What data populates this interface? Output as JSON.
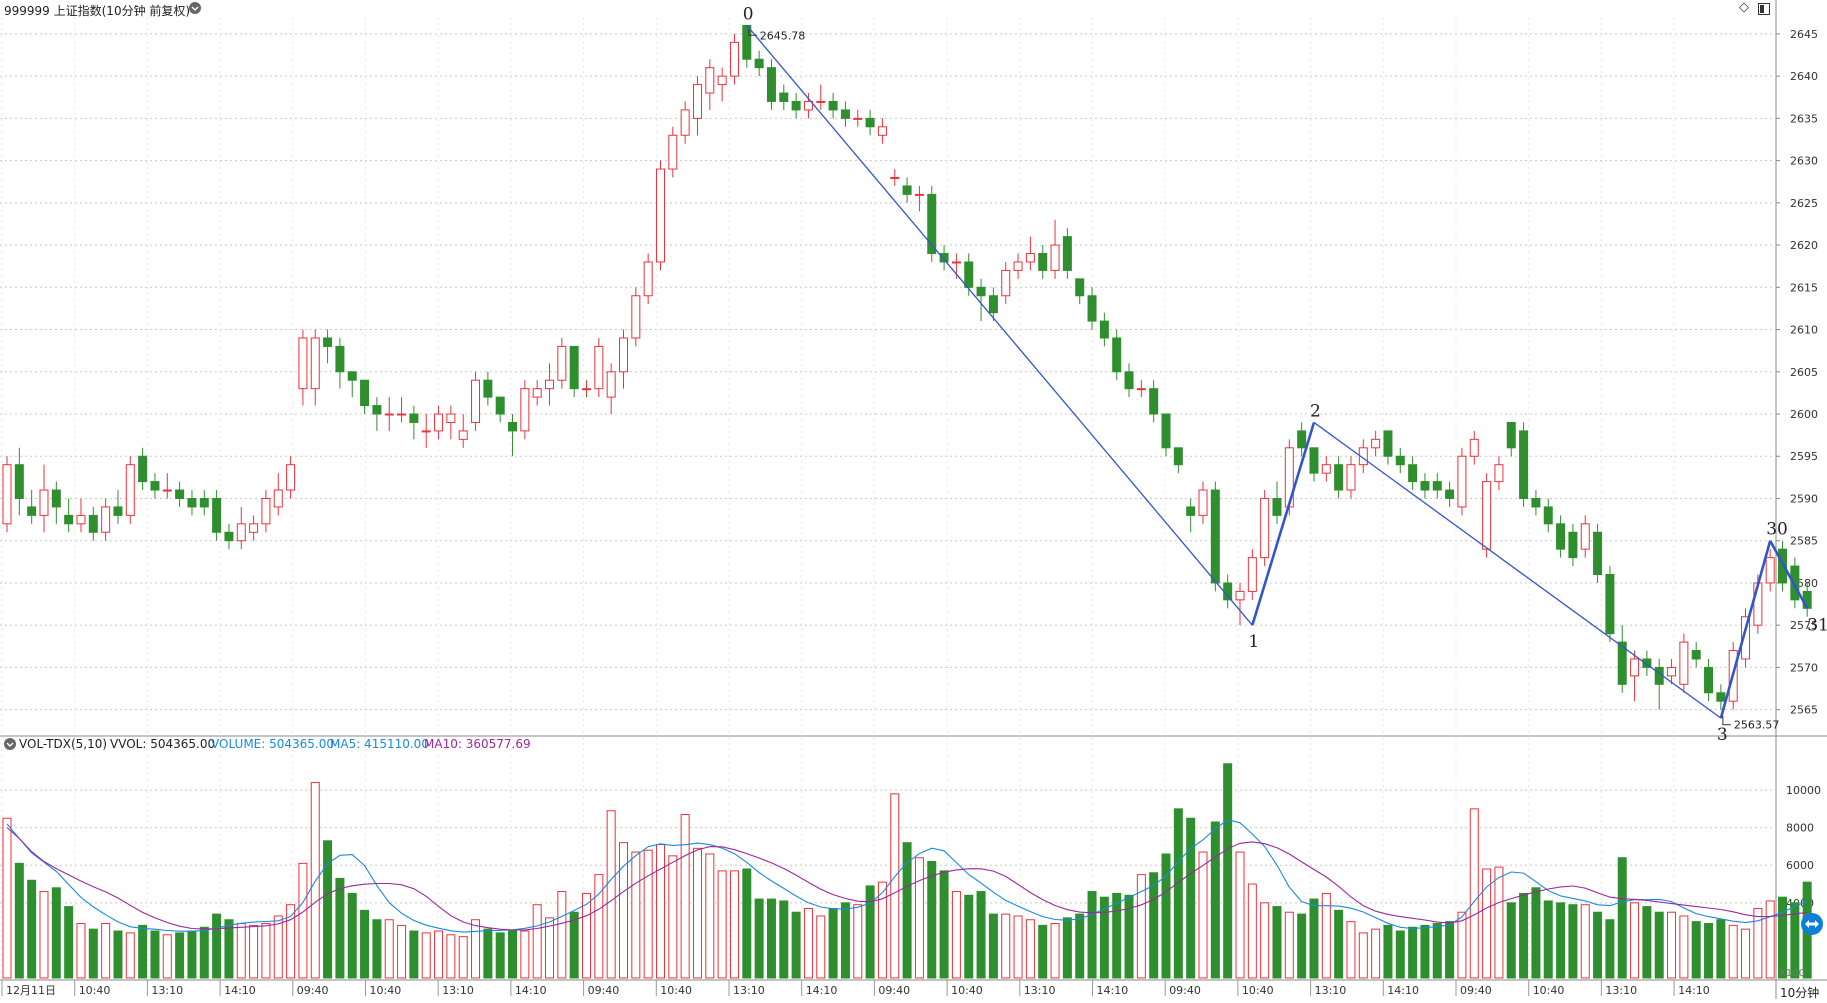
{
  "header": {
    "title": "999999 上证指数(10分钟 前复权)",
    "vol_indicator": "VOL-TDX(5,10)",
    "vvol_label": "VVOL: 504365.00",
    "volume_label": "VOLUME: 504365.00",
    "ma5_label": "MA5: 415110.00",
    "ma10_label": "MA10: 360577.69",
    "vol_unit": "X100",
    "period_label": "10分钟"
  },
  "colors": {
    "up": "#e8343c",
    "down": "#2f8f2f",
    "line": "#3355cc",
    "ma5": "#1a8ae0",
    "ma10": "#9b2a9b",
    "grid": "#c8c8c8"
  },
  "chart_data": [
    {
      "type": "candlestick",
      "y_ticks": [
        "2645",
        "2640",
        "2635",
        "2630",
        "2625",
        "2620",
        "2615",
        "2610",
        "2605",
        "2600",
        "2595",
        "2590",
        "2585",
        "2580",
        "2575",
        "2570",
        "2565"
      ],
      "ylim": [
        2562,
        2647
      ],
      "x_tick_labels": [
        "12月11日",
        "10:40",
        "13:10",
        "14:10",
        "09:40",
        "10:40",
        "13:10",
        "14:10",
        "09:40",
        "10:40",
        "13:10",
        "14:10",
        "09:40",
        "10:40",
        "13:10",
        "14:10",
        "09:40",
        "10:40",
        "13:10",
        "14:10",
        "09:40",
        "10:40",
        "13:10",
        "14:10"
      ],
      "candles": [
        [
          2587,
          2594,
          2595,
          2586
        ],
        [
          2594,
          2590,
          2596,
          2588
        ],
        [
          2589,
          2588,
          2591,
          2587
        ],
        [
          2588,
          2591,
          2594,
          2586
        ],
        [
          2591,
          2589,
          2592,
          2587
        ],
        [
          2588,
          2587,
          2590,
          2586
        ],
        [
          2587,
          2588,
          2590,
          2586
        ],
        [
          2588,
          2586,
          2589,
          2585
        ],
        [
          2586,
          2589,
          2590,
          2585
        ],
        [
          2589,
          2588,
          2591,
          2587
        ],
        [
          2588,
          2594,
          2595,
          2587
        ],
        [
          2595,
          2592,
          2596,
          2591
        ],
        [
          2592,
          2591,
          2593,
          2590
        ],
        [
          2591,
          2591,
          2593,
          2590
        ],
        [
          2591,
          2590,
          2592,
          2589
        ],
        [
          2590,
          2589,
          2591,
          2588
        ],
        [
          2590,
          2589,
          2591,
          2588
        ],
        [
          2590,
          2586,
          2591,
          2585
        ],
        [
          2586,
          2585,
          2587,
          2584
        ],
        [
          2585,
          2587,
          2589,
          2584
        ],
        [
          2586,
          2587,
          2588,
          2585
        ],
        [
          2587,
          2590,
          2591,
          2586
        ],
        [
          2589,
          2591,
          2593,
          2588
        ],
        [
          2591,
          2594,
          2595,
          2590
        ],
        [
          2603,
          2609,
          2610,
          2601
        ],
        [
          2603,
          2609,
          2610,
          2601
        ],
        [
          2609,
          2608,
          2610,
          2606
        ],
        [
          2608,
          2605,
          2609,
          2603
        ],
        [
          2605,
          2604,
          2605,
          2602
        ],
        [
          2604,
          2601,
          2604,
          2600
        ],
        [
          2601,
          2600,
          2602,
          2598
        ],
        [
          2600,
          2600,
          2602,
          2598
        ],
        [
          2600,
          2600,
          2602,
          2599
        ],
        [
          2600,
          2599,
          2601,
          2597
        ],
        [
          2598,
          2598,
          2600,
          2596
        ],
        [
          2598,
          2600,
          2601,
          2597
        ],
        [
          2599,
          2600,
          2601,
          2597
        ],
        [
          2597,
          2598,
          2600,
          2596
        ],
        [
          2599,
          2604,
          2605,
          2598
        ],
        [
          2604,
          2602,
          2605,
          2601
        ],
        [
          2602,
          2600,
          2602,
          2599
        ],
        [
          2599,
          2598,
          2600,
          2595
        ],
        [
          2598,
          2603,
          2604,
          2597
        ],
        [
          2602,
          2603,
          2604,
          2601
        ],
        [
          2603,
          2604,
          2606,
          2601
        ],
        [
          2604,
          2608,
          2609,
          2603
        ],
        [
          2608,
          2603,
          2608,
          2602
        ],
        [
          2603,
          2603,
          2604,
          2602
        ],
        [
          2603,
          2608,
          2609,
          2602
        ],
        [
          2602,
          2605,
          2606,
          2600
        ],
        [
          2605,
          2609,
          2610,
          2603
        ],
        [
          2609,
          2614,
          2615,
          2608
        ],
        [
          2614,
          2618,
          2619,
          2613
        ],
        [
          2618,
          2629,
          2630,
          2617
        ],
        [
          2629,
          2633,
          2634,
          2628
        ],
        [
          2633,
          2636,
          2637,
          2632
        ],
        [
          2635,
          2639,
          2640,
          2633
        ],
        [
          2638,
          2641,
          2642,
          2636
        ],
        [
          2639,
          2640,
          2641,
          2637
        ],
        [
          2640,
          2644,
          2645,
          2639
        ],
        [
          2646,
          2642,
          2646,
          2641
        ],
        [
          2642,
          2641,
          2643,
          2640
        ],
        [
          2641,
          2637,
          2642,
          2636
        ],
        [
          2638,
          2637,
          2639,
          2636
        ],
        [
          2637,
          2636,
          2638,
          2635
        ],
        [
          2636,
          2637,
          2638,
          2635
        ],
        [
          2637,
          2637,
          2639,
          2636
        ],
        [
          2637,
          2636,
          2638,
          2635
        ],
        [
          2636,
          2635,
          2637,
          2634
        ],
        [
          2635,
          2635,
          2636,
          2634
        ],
        [
          2635,
          2634,
          2636,
          2633
        ],
        [
          2633,
          2634,
          2635,
          2632
        ],
        [
          2628,
          2628,
          2629,
          2627
        ],
        [
          2627,
          2626,
          2628,
          2625
        ],
        [
          2626,
          2626,
          2627,
          2624
        ],
        [
          2626,
          2619,
          2627,
          2618
        ],
        [
          2619,
          2618,
          2620,
          2617
        ],
        [
          2618,
          2618,
          2619,
          2616
        ],
        [
          2618,
          2615,
          2619,
          2614
        ],
        [
          2615,
          2614,
          2616,
          2611
        ],
        [
          2614,
          2612,
          2615,
          2611
        ],
        [
          2614,
          2617,
          2618,
          2613
        ],
        [
          2617,
          2618,
          2619,
          2616
        ],
        [
          2618,
          2619,
          2621,
          2617
        ],
        [
          2619,
          2617,
          2620,
          2616
        ],
        [
          2617,
          2620,
          2623,
          2616
        ],
        [
          2621,
          2617,
          2622,
          2616
        ],
        [
          2616,
          2614,
          2616,
          2613
        ],
        [
          2614,
          2611,
          2615,
          2610
        ],
        [
          2611,
          2609,
          2612,
          2608
        ],
        [
          2609,
          2605,
          2610,
          2604
        ],
        [
          2605,
          2603,
          2606,
          2602
        ],
        [
          2603,
          2603,
          2604,
          2602
        ],
        [
          2603,
          2600,
          2604,
          2599
        ],
        [
          2600,
          2596,
          2600,
          2595
        ],
        [
          2596,
          2594,
          2596,
          2593
        ],
        [
          2589,
          2588,
          2590,
          2586
        ],
        [
          2588,
          2591,
          2592,
          2587
        ],
        [
          2591,
          2580,
          2592,
          2579
        ],
        [
          2580,
          2578,
          2581,
          2577
        ],
        [
          2578,
          2579,
          2580,
          2575
        ],
        [
          2579,
          2583,
          2584,
          2578
        ],
        [
          2583,
          2590,
          2591,
          2582
        ],
        [
          2590,
          2588,
          2592,
          2587
        ],
        [
          2589,
          2596,
          2597,
          2588
        ],
        [
          2598,
          2596,
          2599,
          2595
        ],
        [
          2596,
          2593,
          2596,
          2592
        ],
        [
          2593,
          2594,
          2595,
          2592
        ],
        [
          2594,
          2591,
          2595,
          2590
        ],
        [
          2591,
          2594,
          2595,
          2590
        ],
        [
          2594,
          2596,
          2597,
          2593
        ],
        [
          2596,
          2597,
          2598,
          2595
        ],
        [
          2598,
          2595,
          2598,
          2594
        ],
        [
          2595,
          2594,
          2596,
          2593
        ],
        [
          2594,
          2592,
          2595,
          2591
        ],
        [
          2592,
          2591,
          2593,
          2590
        ],
        [
          2592,
          2591,
          2593,
          2590
        ],
        [
          2591,
          2590,
          2592,
          2589
        ],
        [
          2589,
          2595,
          2596,
          2588
        ],
        [
          2595,
          2597,
          2598,
          2594
        ],
        [
          2584,
          2592,
          2593,
          2583
        ],
        [
          2592,
          2594,
          2595,
          2591
        ],
        [
          2599,
          2596,
          2599,
          2595
        ],
        [
          2598,
          2590,
          2599,
          2589
        ],
        [
          2590,
          2589,
          2591,
          2588
        ],
        [
          2589,
          2587,
          2590,
          2586
        ],
        [
          2587,
          2584,
          2588,
          2583
        ],
        [
          2586,
          2583,
          2587,
          2582
        ],
        [
          2584,
          2587,
          2588,
          2583
        ],
        [
          2586,
          2581,
          2587,
          2580
        ],
        [
          2581,
          2574,
          2582,
          2573
        ],
        [
          2573,
          2568,
          2575,
          2567
        ],
        [
          2569,
          2571,
          2572,
          2566
        ],
        [
          2571,
          2570,
          2572,
          2569
        ],
        [
          2570,
          2568,
          2571,
          2565
        ],
        [
          2569,
          2570,
          2571,
          2568
        ],
        [
          2568,
          2573,
          2574,
          2567
        ],
        [
          2572,
          2571,
          2573,
          2570
        ],
        [
          2570,
          2567,
          2571,
          2566
        ],
        [
          2567,
          2566,
          2568,
          2565
        ],
        [
          2566,
          2572,
          2573,
          2565
        ],
        [
          2571,
          2576,
          2577,
          2570
        ],
        [
          2575,
          2580,
          2581,
          2574
        ],
        [
          2580,
          2583,
          2584,
          2579
        ],
        [
          2584,
          2580,
          2585,
          2579
        ],
        [
          2582,
          2578,
          2583,
          2577
        ],
        [
          2579,
          2577,
          2580,
          2576
        ]
      ],
      "wave_points": [
        {
          "label": "0",
          "candle": 60,
          "price": 2646
        },
        {
          "label": "1",
          "candle": 101,
          "price": 2575
        },
        {
          "label": "2",
          "candle": 106,
          "price": 2599
        },
        {
          "label": "3",
          "candle": 139,
          "price": 2564
        },
        {
          "label": "30",
          "candle": 143,
          "price": 2585
        },
        {
          "label": "31",
          "candle": 146,
          "price": 2577
        }
      ],
      "annotations": {
        "high": "2645.78",
        "low": "2563.57"
      }
    },
    {
      "type": "bar",
      "name": "VOLUME",
      "y_ticks": [
        "10000",
        "8000",
        "6000",
        "4000"
      ],
      "ylim": [
        0,
        11600
      ],
      "values": [
        8500,
        6100,
        5200,
        4600,
        4800,
        3800,
        2900,
        2600,
        2900,
        2500,
        2400,
        2800,
        2500,
        2300,
        2400,
        2500,
        2700,
        3400,
        3100,
        2900,
        2800,
        2900,
        3300,
        3900,
        6100,
        10400,
        7300,
        5300,
        4500,
        3600,
        3100,
        3100,
        2800,
        2500,
        2400,
        2500,
        2300,
        2200,
        3100,
        2600,
        2400,
        2500,
        2500,
        3900,
        3200,
        4600,
        3500,
        4500,
        5500,
        8900,
        7200,
        6700,
        6800,
        7100,
        6500,
        8700,
        6900,
        6600,
        5700,
        5700,
        5800,
        4200,
        4200,
        4100,
        3500,
        3700,
        3300,
        3700,
        4000,
        3900,
        4900,
        5100,
        9800,
        7200,
        6400,
        6200,
        5700,
        4600,
        4400,
        4600,
        3400,
        3400,
        3300,
        3100,
        2800,
        2900,
        3200,
        3400,
        4600,
        4300,
        4500,
        4400,
        5500,
        5600,
        6600,
        9000,
        8500,
        6700,
        8300,
        11400,
        6700,
        5000,
        4000,
        3800,
        3500,
        3400,
        4200,
        4500,
        3600,
        3000,
        2400,
        2600,
        2800,
        2500,
        2700,
        2800,
        2900,
        3000,
        3500,
        9000,
        5800,
        5900,
        4000,
        4500,
        4800,
        4100,
        4000,
        3900,
        3900,
        3500,
        3100,
        6400,
        4000,
        3800,
        3500,
        3500,
        3300,
        3000,
        2900,
        3100,
        2800,
        2600,
        3700,
        4100,
        4300,
        4000,
        5100
      ]
    }
  ]
}
